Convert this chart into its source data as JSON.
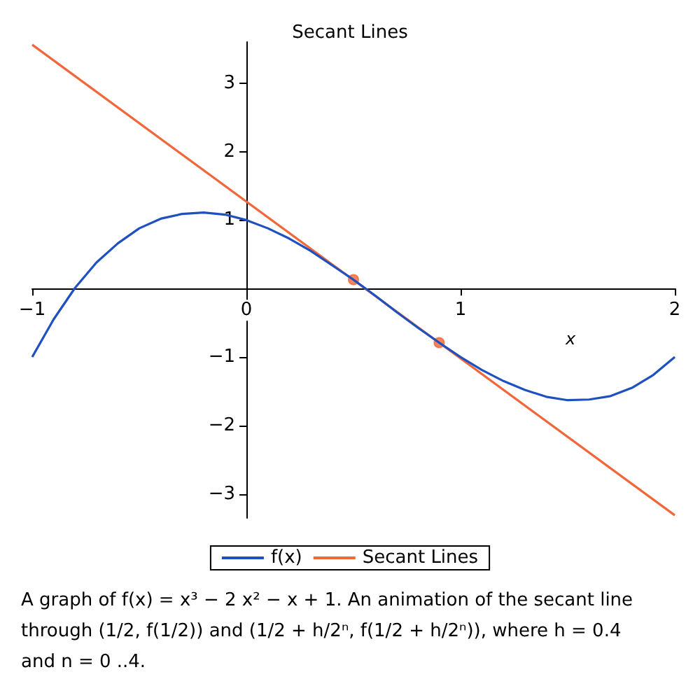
{
  "chart_data": {
    "type": "line",
    "title": "Secant Lines",
    "xlabel": "x",
    "series": [
      {
        "name": "f(x)",
        "color": "#1f50c0",
        "x": [
          -1,
          -0.9,
          -0.8,
          -0.7,
          -0.6,
          -0.5,
          -0.4,
          -0.3,
          -0.2,
          -0.1,
          0,
          0.1,
          0.2,
          0.3,
          0.4,
          0.5,
          0.6,
          0.7,
          0.8,
          0.9,
          1,
          1.1,
          1.2,
          1.3,
          1.4,
          1.5,
          1.6,
          1.7,
          1.8,
          1.9,
          2
        ],
        "values": [
          -1,
          -0.45,
          0.01,
          0.38,
          0.66,
          0.88,
          1.02,
          1.09,
          1.11,
          1.08,
          1,
          0.88,
          0.73,
          0.55,
          0.34,
          0.13,
          -0.1,
          -0.34,
          -0.57,
          -0.79,
          -1,
          -1.19,
          -1.35,
          -1.48,
          -1.58,
          -1.63,
          -1.62,
          -1.57,
          -1.45,
          -1.26,
          -1
        ]
      },
      {
        "name": "Secant Lines",
        "color": "#f0683a",
        "x": [
          -1,
          2
        ],
        "values": [
          3.56,
          -3.31
        ]
      },
      {
        "type": "scatter",
        "marker": "circle",
        "color": "#f0683a",
        "x": [
          0.5,
          0.9
        ],
        "values": [
          0.13,
          -0.79
        ]
      }
    ],
    "xlim": [
      -1,
      2
    ],
    "ylim": [
      -3.35,
      3.6
    ],
    "xticks": [
      -1,
      0,
      1,
      2
    ],
    "yticks": [
      -3,
      -2,
      -1,
      {
        "value": 0,
        "label": null
      },
      1,
      2,
      3
    ],
    "grid": false,
    "legend": "bottom",
    "annotations": [
      "A graph of f(x) = x³ − 2 x² − x + 1. An animation of the secant line through (1/2, f(1/2)) and (1/2 + h/2ⁿ, f(1/2 + h/2ⁿ)), where h = 0.4 and n = 0 ..4."
    ]
  }
}
